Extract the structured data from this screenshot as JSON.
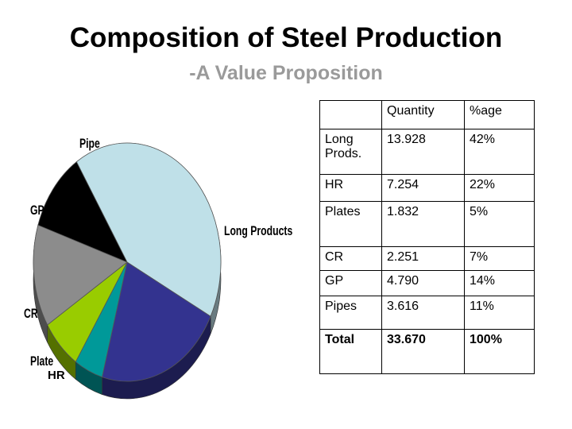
{
  "header": {
    "title": "Composition of Steel Production",
    "subtitle": "-A Value Proposition"
  },
  "chart_data": {
    "type": "pie",
    "title": "",
    "slices": [
      {
        "label": "Long Products",
        "value": 42,
        "color": "#bfe0e8"
      },
      {
        "label": "HR",
        "value": 22,
        "color": "#33338f"
      },
      {
        "label": "Plate",
        "value": 5,
        "color": "#009999"
      },
      {
        "label": "CR",
        "value": 7,
        "color": "#99cc00"
      },
      {
        "label": "GP",
        "value": 14,
        "color": "#8c8c8c"
      },
      {
        "label": "Pipe",
        "value": 11,
        "color": "#000000"
      }
    ]
  },
  "table": {
    "headers": [
      "",
      "Quantity",
      "%age"
    ],
    "rows": [
      {
        "label": "Long Prods.",
        "qty": "13.928",
        "pct": "42%"
      },
      {
        "label": "HR",
        "qty": "7.254",
        "pct": "22%"
      },
      {
        "label": "Plates",
        "qty": "1.832",
        "pct": "5%"
      },
      {
        "label": "CR",
        "qty": "2.251",
        "pct": "7%"
      },
      {
        "label": "GP",
        "qty": "4.790",
        "pct": "14%"
      },
      {
        "label": "Pipes",
        "qty": "3.616",
        "pct": "11%"
      }
    ],
    "total": {
      "label": "Total",
      "qty": "33.670",
      "pct": "100%"
    }
  }
}
